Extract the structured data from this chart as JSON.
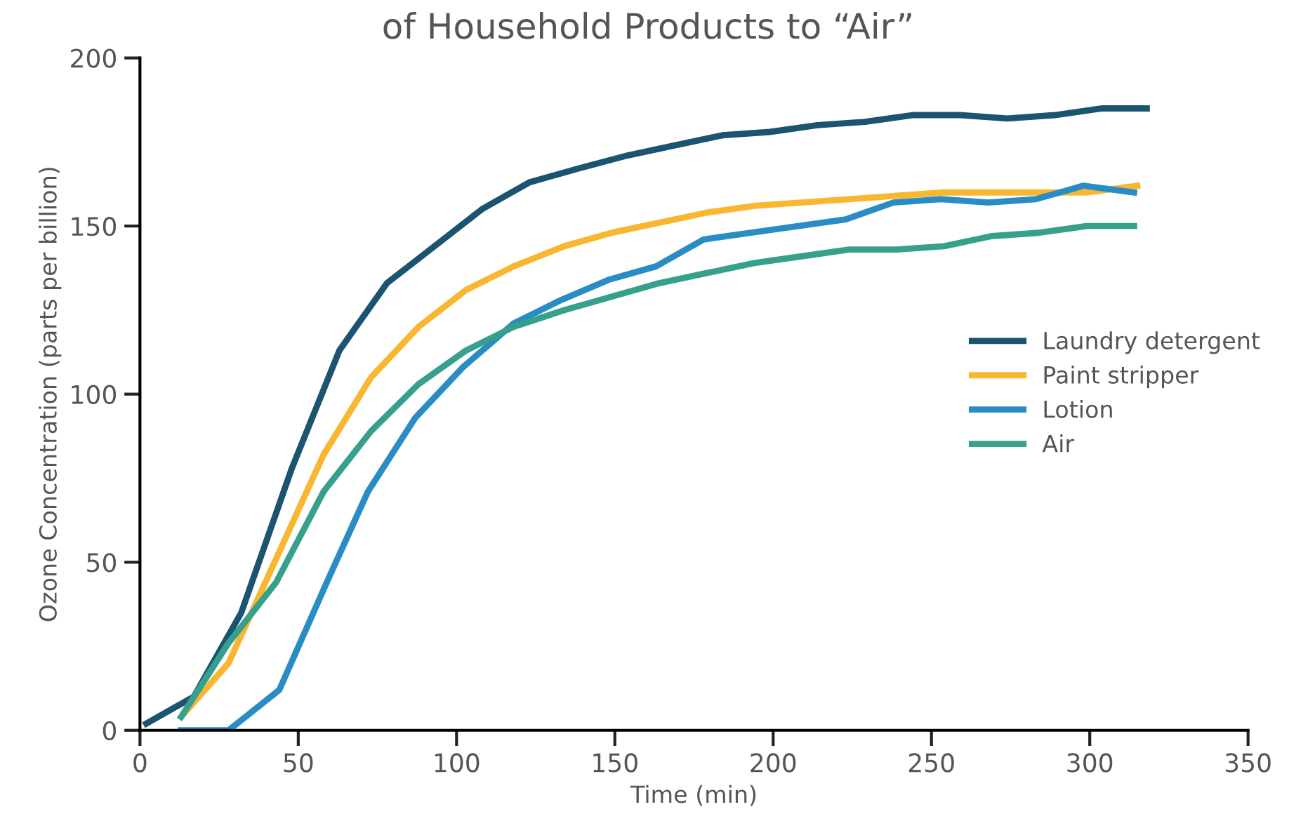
{
  "chart_data": {
    "type": "line",
    "title": "of Household Products to “Air”",
    "xlabel": "Time (min)",
    "ylabel": "Ozone Concentration (parts per billion)",
    "xlim": [
      0,
      350
    ],
    "xticks": [
      0,
      50,
      100,
      150,
      200,
      250,
      300,
      350
    ],
    "ylim": [
      0,
      200
    ],
    "yticks": [
      0,
      50,
      100,
      150,
      200
    ],
    "grid": false,
    "legend": "right",
    "marker": "none",
    "line_style": "solid",
    "series": [
      {
        "name": "Laundry detergent",
        "color": "#1a5470",
        "x": [
          2,
          17,
          32,
          48,
          63,
          78,
          93,
          108,
          123,
          138,
          154,
          169,
          184,
          199,
          214,
          229,
          244,
          259,
          274,
          289,
          304,
          318
        ],
        "values": [
          2,
          10,
          35,
          78,
          113,
          133,
          144,
          155,
          163,
          167,
          171,
          174,
          177,
          178,
          180,
          181,
          183,
          183,
          182,
          183,
          185,
          185
        ]
      },
      {
        "name": "Paint stripper",
        "color": "#f8b631",
        "x": [
          13,
          28,
          43,
          58,
          73,
          88,
          103,
          118,
          134,
          149,
          164,
          179,
          194,
          209,
          224,
          239,
          254,
          269,
          284,
          299,
          315
        ],
        "values": [
          4,
          20,
          51,
          82,
          105,
          120,
          131,
          138,
          144,
          148,
          151,
          154,
          156,
          157,
          158,
          159,
          160,
          160,
          160,
          160,
          162
        ]
      },
      {
        "name": "Lotion",
        "color": "#2a8cc4",
        "x": [
          13,
          28,
          44,
          59,
          72,
          87,
          102,
          118,
          133,
          148,
          163,
          178,
          193,
          208,
          223,
          238,
          253,
          268,
          283,
          298,
          314
        ],
        "values": [
          0,
          0,
          12,
          44,
          71,
          93,
          108,
          121,
          128,
          134,
          138,
          146,
          148,
          150,
          152,
          157,
          158,
          157,
          158,
          162,
          160
        ]
      },
      {
        "name": "Air",
        "color": "#36a08c",
        "x": [
          13,
          28,
          43,
          58,
          73,
          88,
          103,
          118,
          134,
          149,
          164,
          179,
          194,
          209,
          224,
          239,
          254,
          269,
          284,
          299,
          314
        ],
        "values": [
          4,
          26,
          44,
          71,
          89,
          103,
          113,
          120,
          125,
          129,
          133,
          136,
          139,
          141,
          143,
          143,
          144,
          147,
          148,
          150,
          150
        ]
      }
    ]
  }
}
